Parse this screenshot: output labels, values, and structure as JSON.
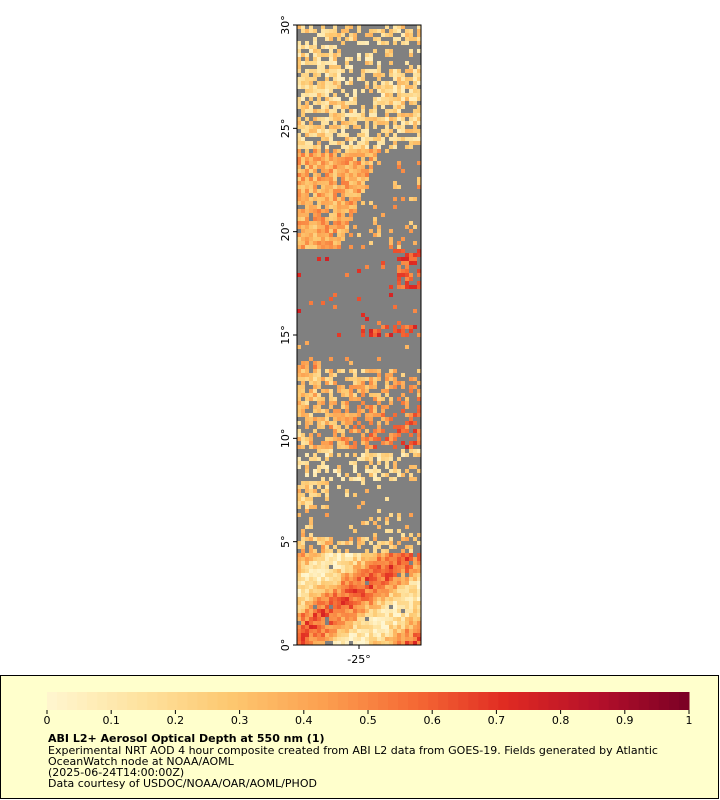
{
  "chart_data": {
    "type": "map",
    "xlim": [
      -28,
      -22
    ],
    "ylim": [
      0,
      30
    ],
    "xticks": [
      {
        "value": -25,
        "label": "-25°"
      }
    ],
    "yticks": [
      {
        "value": 0,
        "label": "0°"
      },
      {
        "value": 5,
        "label": "5°"
      },
      {
        "value": 10,
        "label": "10°"
      },
      {
        "value": 15,
        "label": "15°"
      },
      {
        "value": 20,
        "label": "20°"
      },
      {
        "value": 25,
        "label": "25°"
      },
      {
        "value": 30,
        "label": "30°"
      }
    ],
    "colorbar": {
      "lim": [
        0,
        1
      ],
      "ticks": [
        0,
        0.1,
        0.2,
        0.3,
        0.4,
        0.5,
        0.6,
        0.7,
        0.8,
        0.9,
        1
      ],
      "colors": [
        "#fff6d0",
        "#fee3a0",
        "#fdc870",
        "#fca050",
        "#f56a35",
        "#e02a22",
        "#b5102a",
        "#7a0025"
      ]
    },
    "legend": {
      "title": "ABI L2+ Aerosol Optical Depth at 550 nm (1)",
      "lines": [
        "Experimental NRT AOD 4 hour composite created from ABI L2 data from GOES-19. Fields generated by Atlantic",
        "OceanWatch node at NOAA/AOML",
        "(2025-06-24T14:00:00Z)",
        "Data courtesy of USDOC/NOAA/OAR/AOML/PHOD"
      ]
    }
  }
}
